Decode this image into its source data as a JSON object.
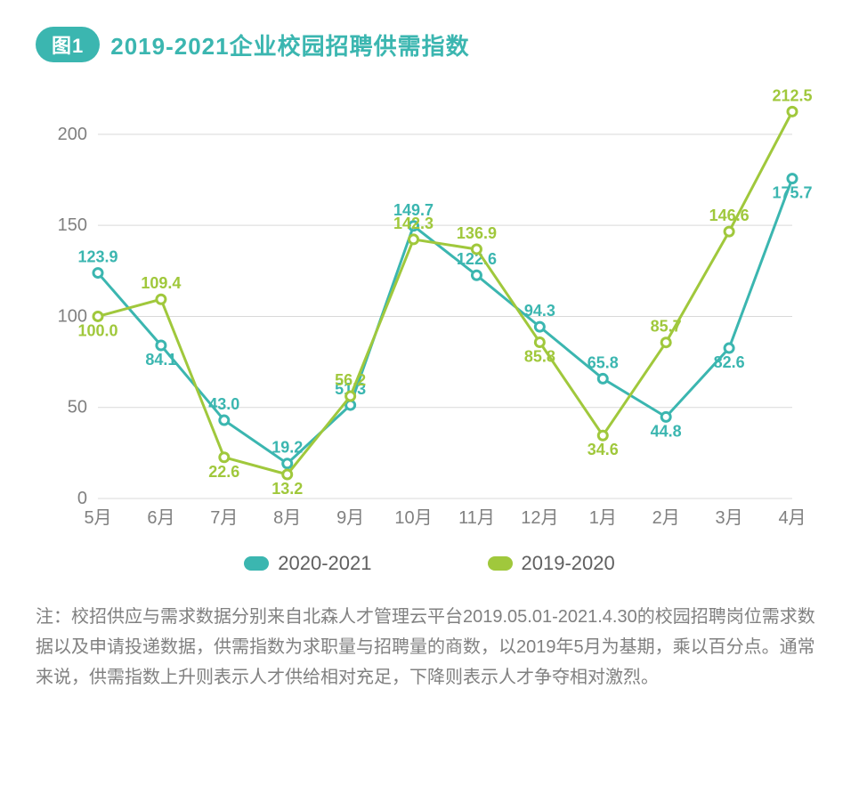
{
  "header": {
    "badge": "图1",
    "title": "2019-2021企业校园招聘供需指数"
  },
  "chart": {
    "type": "line",
    "x_categories": [
      "5月",
      "6月",
      "7月",
      "8月",
      "9月",
      "10月",
      "11月",
      "12月",
      "1月",
      "2月",
      "3月",
      "4月"
    ],
    "ylim": [
      0,
      220
    ],
    "yticks": [
      0,
      50,
      100,
      150,
      200
    ],
    "grid_color": "#d9d9d9",
    "background_color": "#ffffff",
    "axis_label_color": "#808080",
    "axis_label_fontsize": 20,
    "value_label_fontsize": 18,
    "line_width": 3,
    "marker_radius": 5,
    "series": [
      {
        "name": "2020-2021",
        "color": "#3bb6b0",
        "values": [
          123.9,
          84.1,
          43.0,
          19.2,
          51.3,
          149.7,
          122.6,
          94.3,
          65.8,
          44.8,
          82.6,
          175.7
        ],
        "label_offset": [
          "above",
          "below",
          "above",
          "above",
          "above",
          "above",
          "above",
          "above",
          "above",
          "below",
          "below",
          "below"
        ]
      },
      {
        "name": "2019-2020",
        "color": "#a0c83c",
        "values": [
          100.0,
          109.4,
          22.6,
          13.2,
          56.2,
          142.3,
          136.9,
          85.8,
          34.6,
          85.7,
          146.6,
          212.5
        ],
        "label_offset": [
          "below",
          "above",
          "below",
          "below",
          "above",
          "above",
          "above",
          "below",
          "below",
          "above",
          "above",
          "above"
        ]
      }
    ]
  },
  "legend": {
    "items": [
      {
        "label": "2020-2021",
        "color": "#3bb6b0"
      },
      {
        "label": "2019-2020",
        "color": "#a0c83c"
      }
    ]
  },
  "note": {
    "prefix": "注：",
    "text": "校招供应与需求数据分别来自北森人才管理云平台2019.05.01-2021.4.30的校园招聘岗位需求数据以及申请投递数据，供需指数为求职量与招聘量的商数，以2019年5月为基期，乘以百分点。通常来说，供需指数上升则表示人才供给相对充足，下降则表示人才争夺相对激烈。"
  }
}
